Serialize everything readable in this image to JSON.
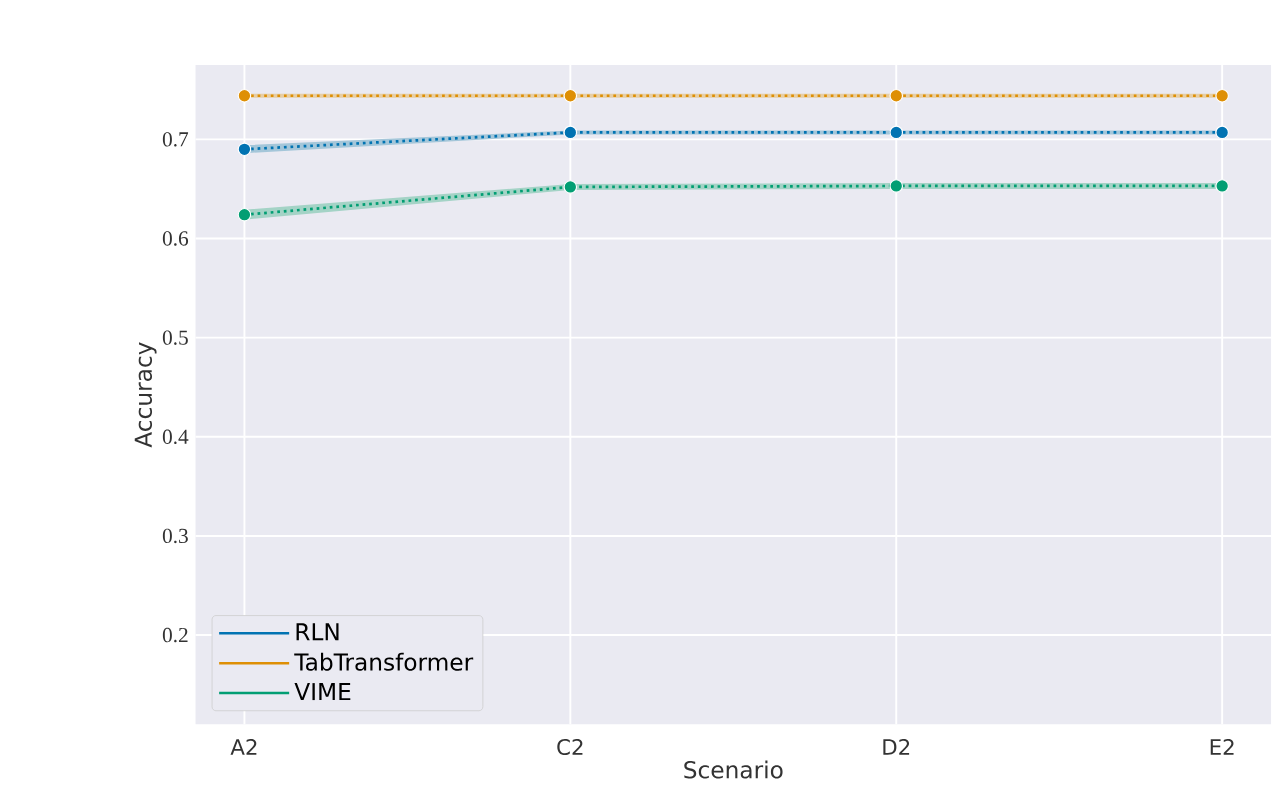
{
  "chart_data": {
    "type": "line",
    "xlabel": "Scenario",
    "ylabel": "Accuracy",
    "categories": [
      "A2",
      "C2",
      "D2",
      "E2"
    ],
    "series": [
      {
        "name": "RLN",
        "color": "#0173b2",
        "values": [
          0.69,
          0.707,
          0.707,
          0.707
        ],
        "lower": [
          0.686,
          0.705,
          0.705,
          0.705
        ],
        "upper": [
          0.694,
          0.709,
          0.709,
          0.709
        ]
      },
      {
        "name": "TabTransformer",
        "color": "#de8f05",
        "values": [
          0.744,
          0.744,
          0.744,
          0.744
        ],
        "lower": [
          0.742,
          0.742,
          0.742,
          0.742
        ],
        "upper": [
          0.746,
          0.746,
          0.746,
          0.746
        ]
      },
      {
        "name": "VIME",
        "color": "#029e73",
        "values": [
          0.624,
          0.652,
          0.653,
          0.653
        ],
        "lower": [
          0.619,
          0.649,
          0.65,
          0.65
        ],
        "upper": [
          0.629,
          0.655,
          0.656,
          0.656
        ]
      }
    ],
    "ylim": [
      0.11,
      0.775
    ],
    "yticks": [
      0.2,
      0.3,
      0.4,
      0.5,
      0.6,
      0.7
    ],
    "grid": true,
    "legend": "bottom left",
    "marker": "circle",
    "line_style": "dotted"
  }
}
